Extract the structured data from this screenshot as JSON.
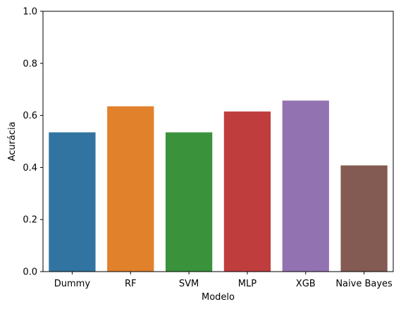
{
  "chart_data": {
    "type": "bar",
    "title": "",
    "xlabel": "Modelo",
    "ylabel": "Acurácia",
    "categories": [
      "Dummy",
      "RF",
      "SVM",
      "MLP",
      "XGB",
      "Naive Bayes"
    ],
    "values": [
      0.535,
      0.635,
      0.535,
      0.615,
      0.657,
      0.408
    ],
    "ylim": [
      0,
      1
    ],
    "yticks": [
      "0.0",
      "0.2",
      "0.4",
      "0.6",
      "0.8",
      "1.0"
    ],
    "grid": false,
    "legend": "none",
    "colors": [
      "#3274a1",
      "#e1812c",
      "#3a923a",
      "#c03d3e",
      "#9372b2",
      "#845b53"
    ]
  }
}
